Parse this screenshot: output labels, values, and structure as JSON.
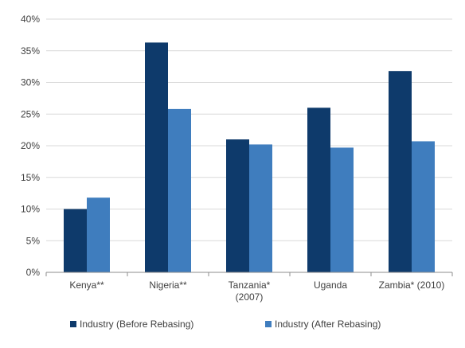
{
  "chart_data": {
    "type": "bar",
    "categories": [
      [
        "Kenya**"
      ],
      [
        "Nigeria**"
      ],
      [
        "Tanzania*",
        "(2007)"
      ],
      [
        "Uganda"
      ],
      [
        "Zambia* (2010)"
      ]
    ],
    "series": [
      {
        "name": "Industry (Before Rebasing)",
        "color": "#0e3a6b",
        "values": [
          10.0,
          36.3,
          21.0,
          26.0,
          31.8
        ]
      },
      {
        "name": "Industry (After Rebasing)",
        "color": "#3f7dbe",
        "values": [
          11.8,
          25.8,
          20.2,
          19.7,
          20.7
        ]
      }
    ],
    "ylim": [
      0,
      40
    ],
    "yticks": [
      0,
      5,
      10,
      15,
      20,
      25,
      30,
      35,
      40
    ],
    "ytick_suffix": "%",
    "grid": true,
    "legend": "bottom",
    "title": "",
    "xlabel": "",
    "ylabel": ""
  }
}
